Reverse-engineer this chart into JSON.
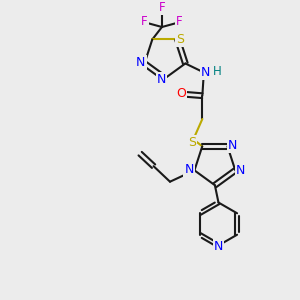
{
  "bg_color": "#ececec",
  "bond_color": "#1a1a1a",
  "N_color": "#0000ff",
  "S_color": "#bbaa00",
  "O_color": "#ff0000",
  "F_color": "#cc00cc",
  "H_color": "#008080",
  "lw": 1.5,
  "figsize": [
    3.0,
    3.0
  ],
  "dpi": 100,
  "xlim": [
    0,
    10
  ],
  "ylim": [
    0,
    10
  ]
}
